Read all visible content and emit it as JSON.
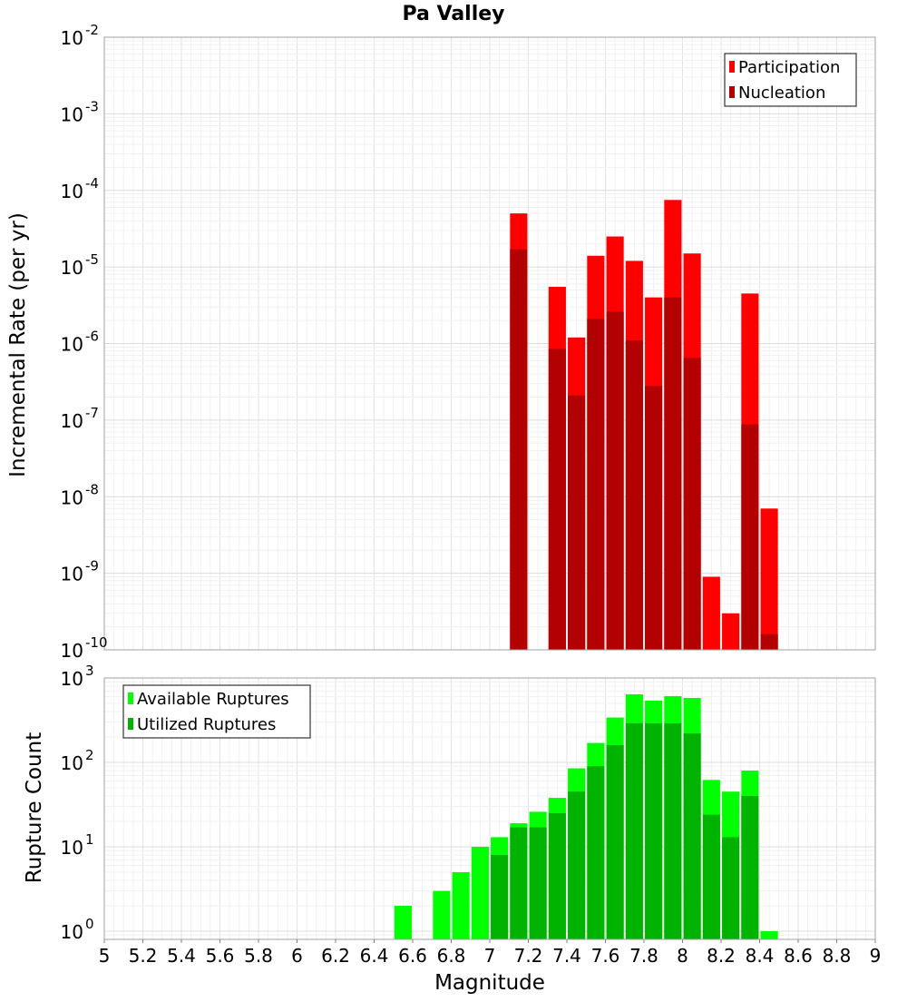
{
  "chart_data": [
    {
      "type": "bar",
      "panel": "top",
      "title": "Pa Valley",
      "xlabel": "",
      "ylabel": "Incremental Rate (per yr)",
      "yscale": "log",
      "ylim": [
        1e-10,
        0.01
      ],
      "xlim": [
        5,
        9
      ],
      "ytick_exponents": [
        "-10",
        "-9",
        "-8",
        "-7",
        "-6",
        "-5",
        "-4",
        "-3",
        "-2"
      ],
      "grid": true,
      "legend_position": "top-right",
      "series": [
        {
          "name": "Participation",
          "color": "#ff0000",
          "x": [
            7.15,
            7.35,
            7.45,
            7.55,
            7.65,
            7.75,
            7.85,
            7.95,
            8.05,
            8.15,
            8.25,
            8.35,
            8.45
          ],
          "values": [
            5e-05,
            5.5e-06,
            1.2e-06,
            1.4e-05,
            2.5e-05,
            1.2e-05,
            4e-06,
            7.5e-05,
            1.5e-05,
            9e-10,
            3e-10,
            4.5e-06,
            7e-09
          ]
        },
        {
          "name": "Nucleation",
          "color": "#b30000",
          "x": [
            7.15,
            7.35,
            7.45,
            7.55,
            7.65,
            7.75,
            7.85,
            7.95,
            8.05,
            8.35,
            8.45
          ],
          "values": [
            1.7e-05,
            8.5e-07,
            2.1e-07,
            2.1e-06,
            2.6e-06,
            1.1e-06,
            2.8e-07,
            4e-06,
            6.5e-07,
            8.8e-08,
            1.6e-10
          ]
        }
      ]
    },
    {
      "type": "bar",
      "panel": "bottom",
      "xlabel": "Magnitude",
      "ylabel": "Rupture Count",
      "yscale": "log",
      "ylim": [
        0.8,
        1000
      ],
      "xlim": [
        5,
        9
      ],
      "ytick_exponents": [
        "0",
        "1",
        "2",
        "3"
      ],
      "xticks": [
        "5",
        "5.2",
        "5.4",
        "5.6",
        "5.8",
        "6",
        "6.2",
        "6.4",
        "6.6",
        "6.8",
        "7",
        "7.2",
        "7.4",
        "7.6",
        "7.8",
        "8",
        "8.2",
        "8.4",
        "8.6",
        "8.8",
        "9"
      ],
      "grid": true,
      "legend_position": "top-left",
      "series": [
        {
          "name": "Available Ruptures",
          "color": "#00ff00",
          "x": [
            6.55,
            6.75,
            6.85,
            6.95,
            7.05,
            7.15,
            7.25,
            7.35,
            7.45,
            7.55,
            7.65,
            7.75,
            7.85,
            7.95,
            8.05,
            8.15,
            8.25,
            8.35,
            8.45
          ],
          "values": [
            2,
            3,
            5,
            10,
            13,
            19,
            26,
            38,
            85,
            170,
            340,
            640,
            540,
            610,
            580,
            62,
            45,
            80,
            1
          ]
        },
        {
          "name": "Utilized Ruptures",
          "color": "#00b300",
          "x": [
            7.05,
            7.15,
            7.25,
            7.35,
            7.45,
            7.55,
            7.65,
            7.75,
            7.85,
            7.95,
            8.05,
            8.15,
            8.25,
            8.35
          ],
          "values": [
            8,
            17,
            17,
            25,
            45,
            90,
            160,
            290,
            290,
            290,
            220,
            24,
            13,
            40
          ]
        }
      ]
    }
  ]
}
